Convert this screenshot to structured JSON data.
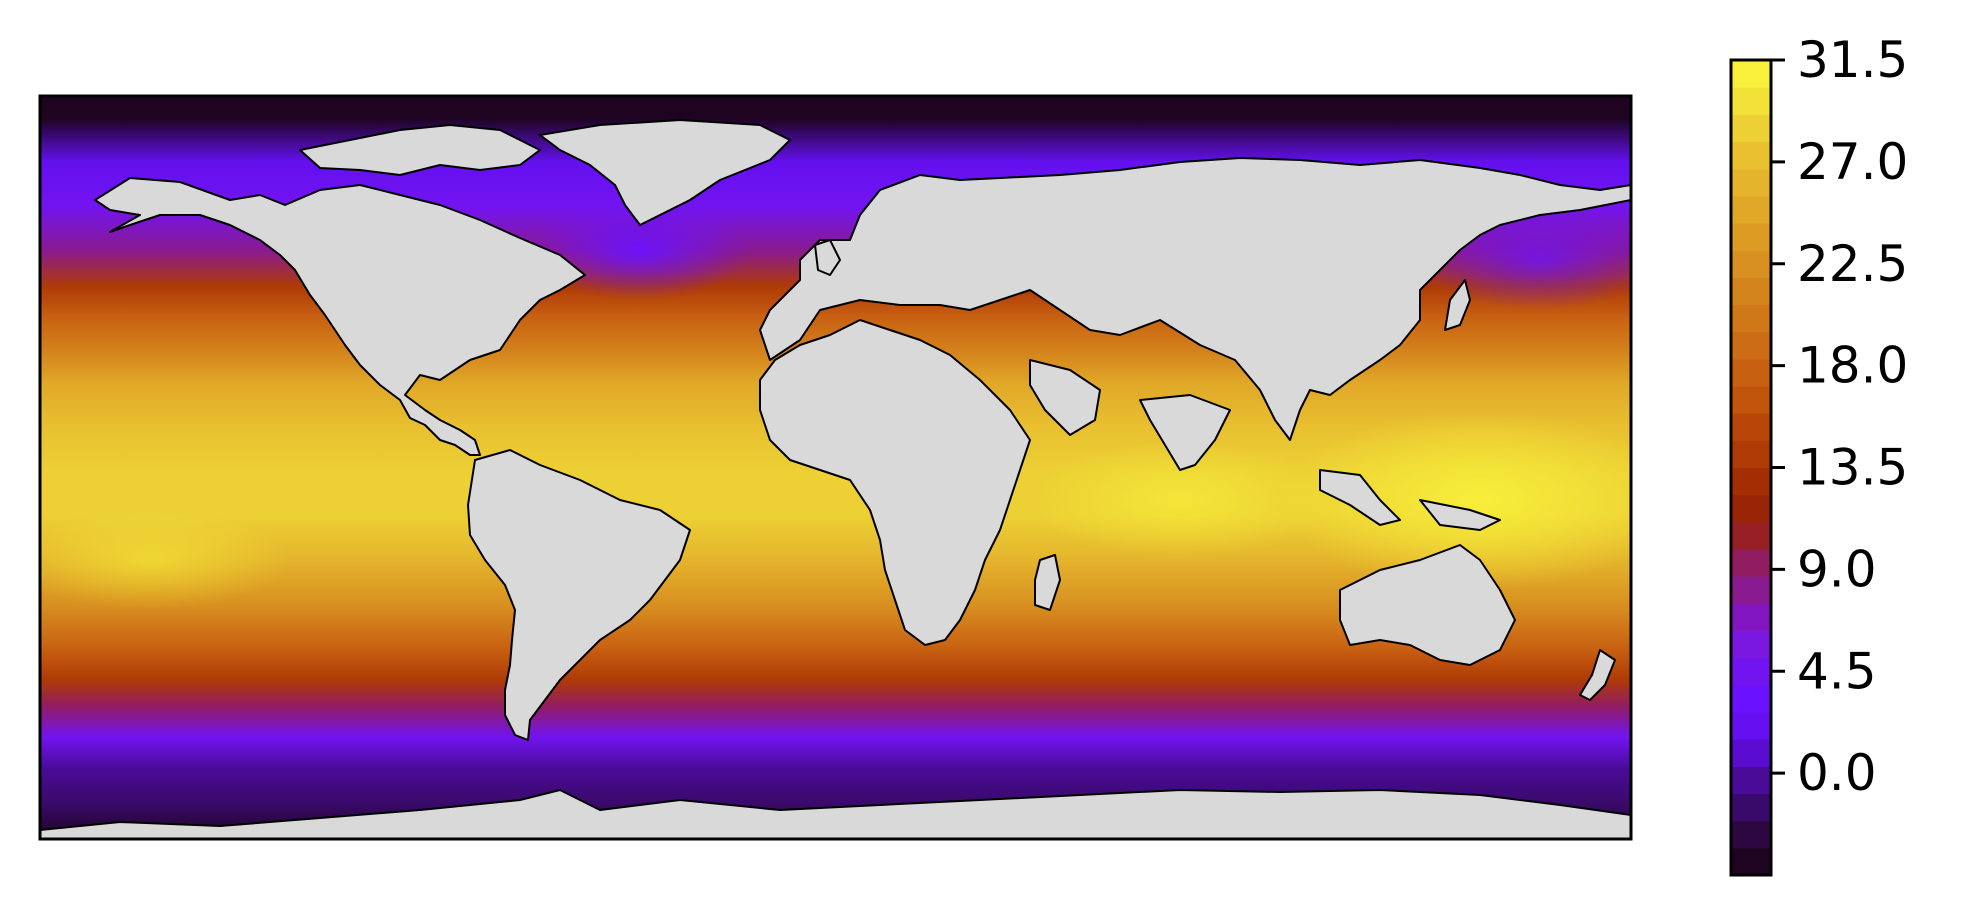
{
  "chart_data": {
    "type": "heatmap",
    "description_kind": "filled-contour map of sea surface temperature on an equirectangular world projection",
    "title": "",
    "xlabel": "",
    "ylabel": "",
    "projection": "equirectangular",
    "x_range_deg": [
      -180,
      180
    ],
    "y_range_deg": [
      -78,
      90
    ],
    "land_color": "#d9d9d9",
    "coastline_color": "#000000",
    "colormap": "gnuplot-like (black → violet → red → orange → yellow)",
    "colorbar": {
      "placement": "right",
      "orientation": "vertical",
      "vmin": -4.5,
      "vmax": 31.5,
      "level_step": 1.5,
      "ticks": [
        0.0,
        4.5,
        9.0,
        13.5,
        18.0,
        22.5,
        27.0,
        31.5
      ],
      "tick_labels": [
        "0.0",
        "4.5",
        "9.0",
        "13.5",
        "18.0",
        "22.5",
        "27.0",
        "31.5"
      ],
      "colors": [
        "#1e0420",
        "#2c0740",
        "#3a0a6a",
        "#4a0b99",
        "#5a0cd0",
        "#6410f0",
        "#6a12ff",
        "#7214f0",
        "#7a18e0",
        "#8216c0",
        "#8a1a90",
        "#921c62",
        "#962024",
        "#9a2406",
        "#a42e04",
        "#ae3a06",
        "#b84608",
        "#c2540c",
        "#c86012",
        "#cc6c16",
        "#d07818",
        "#d4841c",
        "#d89020",
        "#dc9c24",
        "#e0a828",
        "#e4b42c",
        "#e8c030",
        "#ecd034",
        "#f2e238",
        "#f8f03a"
      ]
    },
    "zonal_profile_north_to_south": [
      {
        "lat": 85,
        "value": -4.0
      },
      {
        "lat": 75,
        "value": 2.0
      },
      {
        "lat": 65,
        "value": 5.0
      },
      {
        "lat": 55,
        "value": 8.0
      },
      {
        "lat": 47,
        "value": 13.5
      },
      {
        "lat": 40,
        "value": 18.0
      },
      {
        "lat": 32,
        "value": 21.5
      },
      {
        "lat": 25,
        "value": 25.0
      },
      {
        "lat": 15,
        "value": 27.5
      },
      {
        "lat": 5,
        "value": 29.0
      },
      {
        "lat": -5,
        "value": 28.0
      },
      {
        "lat": -15,
        "value": 26.0
      },
      {
        "lat": -25,
        "value": 22.5
      },
      {
        "lat": -35,
        "value": 18.0
      },
      {
        "lat": -42,
        "value": 13.5
      },
      {
        "lat": -48,
        "value": 9.0
      },
      {
        "lat": -55,
        "value": 4.5
      },
      {
        "lat": -62,
        "value": 0.0
      },
      {
        "lat": -70,
        "value": -2.0
      },
      {
        "lat": -78,
        "value": -3.5
      }
    ]
  }
}
